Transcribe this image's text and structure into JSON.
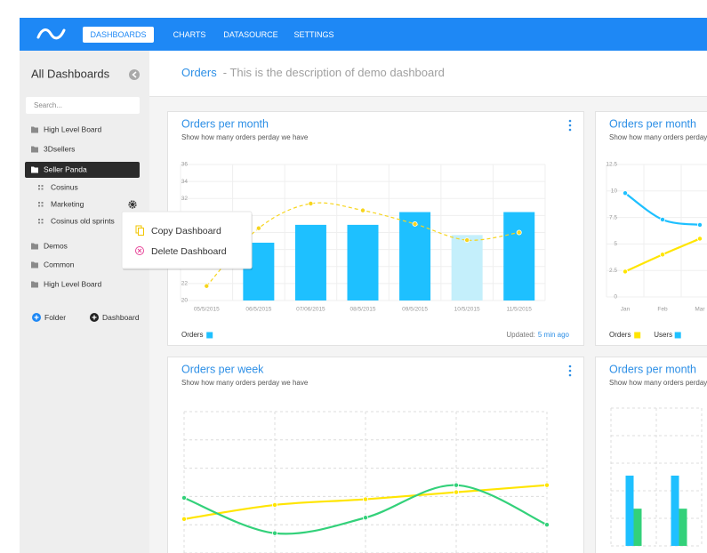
{
  "nav": {
    "items": [
      {
        "label": "DASHBOARDS",
        "active": true
      },
      {
        "label": "CHARTS"
      },
      {
        "label": "DATASOURCE"
      },
      {
        "label": "SETTINGS"
      }
    ]
  },
  "sidebar": {
    "title": "All Dashboards",
    "search_placeholder": "Search...",
    "items": [
      {
        "label": "High Level Board",
        "level": 0
      },
      {
        "label": "3Dsellers",
        "level": 0
      },
      {
        "label": "Seller Panda",
        "level": 0,
        "selected": true
      },
      {
        "label": "Cosinus",
        "level": 1
      },
      {
        "label": "Marketing",
        "level": 1,
        "settings": true
      },
      {
        "label": "Cosinus old sprints",
        "level": 1
      },
      {
        "label": "Demos",
        "level": 0
      },
      {
        "label": "Common",
        "level": 0
      },
      {
        "label": "High Level Board",
        "level": 0
      }
    ],
    "buttons": [
      {
        "label": "Folder",
        "color": "#1e88f5"
      },
      {
        "label": "Dashboard",
        "color": "#222222"
      }
    ]
  },
  "context_menu": [
    {
      "label": "Copy Dashboard",
      "color": "#f2c500"
    },
    {
      "label": "Delete Dashboard",
      "color": "#e8479a"
    }
  ],
  "header": {
    "title": "Orders",
    "description": "- This is the description of demo dashboard"
  },
  "chart_data": [
    {
      "type": "bar",
      "title": "Orders per month",
      "subtitle": "Show how many orders perday we have",
      "categories": [
        "05/5/2015",
        "06/5/2015",
        "07/06/2015",
        "08/5/2015",
        "09/5/2015",
        "10/5/2015",
        "11/5/2015"
      ],
      "series": [
        {
          "name": "Orders",
          "type": "bar",
          "color": "#1ec0ff",
          "colors": [
            "#1ec0ff",
            "#1ec0ff",
            "#1ec0ff",
            "#1ec0ff",
            "#1ec0ff",
            "#c4effb",
            "#1ec0ff"
          ],
          "values": [
            null,
            26.8,
            28.9,
            28.9,
            30.4,
            27.7,
            30.4
          ]
        },
        {
          "type": "line",
          "color": "#f7d51d",
          "dashed": true,
          "values": [
            21.7,
            28.5,
            31.4,
            30.6,
            29,
            27.1,
            28
          ]
        }
      ],
      "ylim": [
        20,
        36
      ],
      "yticks": [
        20,
        22,
        24,
        26,
        28,
        30,
        32,
        34,
        36
      ],
      "grid": true,
      "footer": {
        "label": "Updated:",
        "value": "5 min ago"
      }
    },
    {
      "type": "line",
      "title": "Orders per month",
      "subtitle": "Show how many orders perday we have",
      "categories": [
        "Jan",
        "Feb",
        "Mar"
      ],
      "series": [
        {
          "name": "Orders",
          "color": "#ffe500",
          "values": [
            2.4,
            4.0,
            5.5
          ]
        },
        {
          "name": "Users",
          "color": "#1ec0ff",
          "values": [
            9.8,
            7.3,
            6.8
          ]
        }
      ],
      "ylim": [
        0,
        12.5
      ],
      "yticks": [
        0,
        2.5,
        5,
        7.5,
        10,
        12.5
      ],
      "grid": true
    },
    {
      "type": "line",
      "title": "Orders per week",
      "subtitle": "Show how many orders perday we have",
      "categories": [
        null,
        null,
        null,
        null,
        null
      ],
      "series": [
        {
          "color": "#ffe500",
          "values": [
            24,
            34,
            38,
            43,
            48
          ]
        },
        {
          "color": "#33d17a",
          "values": [
            39,
            14,
            25,
            48,
            20
          ]
        }
      ],
      "ylim": [
        0,
        100
      ],
      "grid": true
    },
    {
      "type": "bar",
      "title": "Orders per month",
      "subtitle": "Show how many orders perday we have",
      "categories": [
        null,
        null
      ],
      "series": [
        {
          "color": "#1ec0ff",
          "values": [
            51,
            51
          ]
        },
        {
          "color": "#33d17a",
          "values": [
            27,
            27
          ]
        }
      ],
      "ylim": [
        0,
        100
      ],
      "grid": true
    }
  ]
}
